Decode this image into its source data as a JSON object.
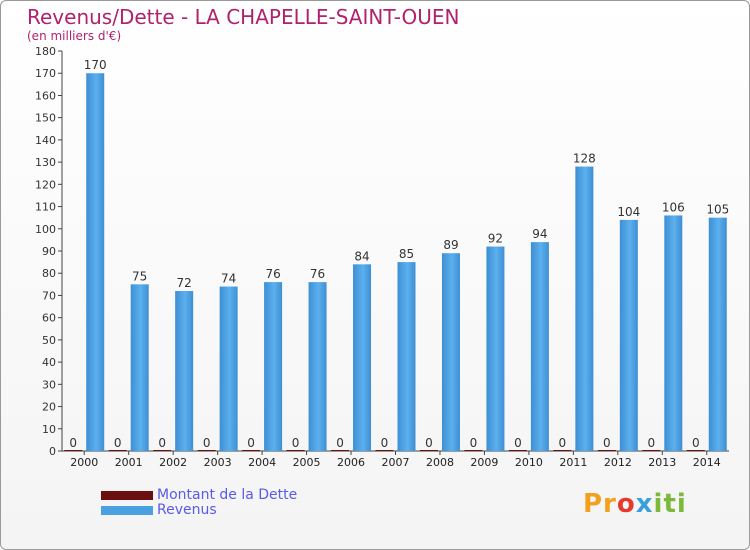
{
  "title": "Revenus/Dette - LA CHAPELLE-SAINT-OUEN",
  "subtitle": "(en milliers d'€)",
  "logo_text": "Proxiti",
  "colors": {
    "title": "#b0226e",
    "revenus": "#4aa0e0",
    "dette": "#6b1010",
    "legend_text": "#5a5ae8"
  },
  "legend": [
    {
      "name": "Montant de la Dette",
      "color": "#6b1010"
    },
    {
      "name": "Revenus",
      "color": "#4aa0e0"
    }
  ],
  "chart_data": {
    "type": "bar",
    "title": "Revenus/Dette - LA CHAPELLE-SAINT-OUEN",
    "subtitle": "(en milliers d'€)",
    "xlabel": "",
    "ylabel": "",
    "ylim": [
      0,
      180
    ],
    "yticks": [
      0,
      10,
      20,
      30,
      40,
      50,
      60,
      70,
      80,
      90,
      100,
      110,
      120,
      130,
      140,
      150,
      160,
      170,
      180
    ],
    "grid": false,
    "legend_position": "bottom-left",
    "categories": [
      "2000",
      "2001",
      "2002",
      "2003",
      "2004",
      "2005",
      "2006",
      "2007",
      "2008",
      "2009",
      "2010",
      "2011",
      "2012",
      "2013",
      "2014"
    ],
    "series": [
      {
        "name": "Montant de la Dette",
        "values": [
          0,
          0,
          0,
          0,
          0,
          0,
          0,
          0,
          0,
          0,
          0,
          0,
          0,
          0,
          0
        ]
      },
      {
        "name": "Revenus",
        "values": [
          170,
          75,
          72,
          74,
          76,
          76,
          84,
          85,
          89,
          92,
          94,
          128,
          104,
          106,
          105
        ]
      }
    ]
  }
}
